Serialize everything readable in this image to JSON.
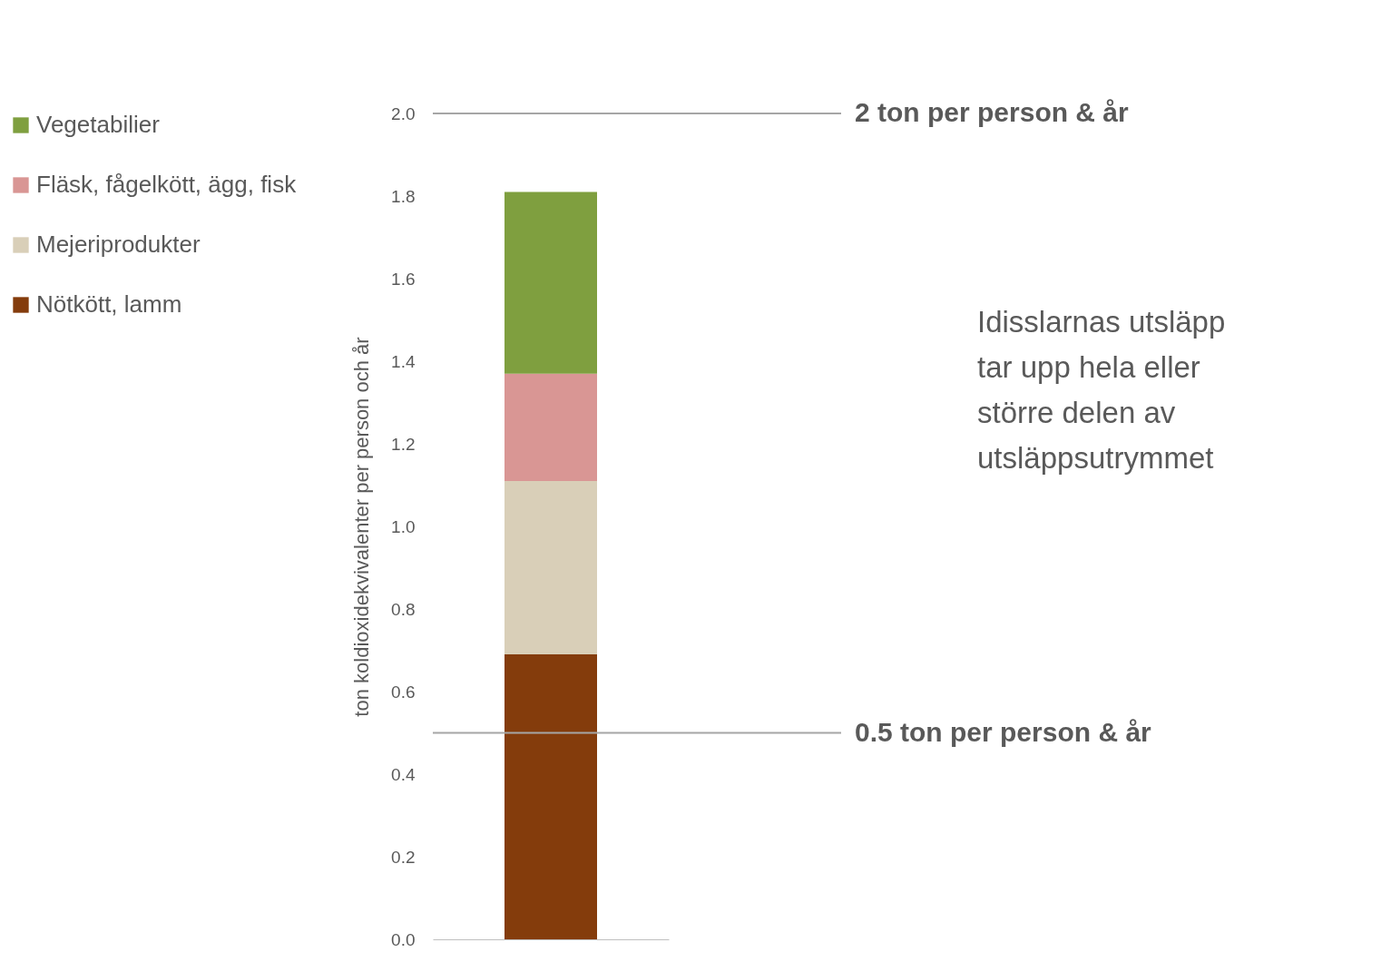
{
  "chart_data": {
    "type": "bar",
    "stacked": true,
    "categories": [
      null
    ],
    "series": [
      {
        "name": "Nötkött, lamm",
        "color": "#843c0c",
        "values": [
          0.69
        ]
      },
      {
        "name": "Mejeriprodukter",
        "color": "#d9cfb8",
        "values": [
          0.42
        ]
      },
      {
        "name": "Fläsk, fågelkött, ägg, fisk",
        "color": "#d99694",
        "values": [
          0.26
        ]
      },
      {
        "name": "Vegetabilier",
        "color": "#7f9f3f",
        "values": [
          0.44
        ]
      }
    ],
    "ylabel": "ton koldioxidekvivalenter per person och år",
    "ylim": [
      0,
      2.0
    ],
    "yticks": [
      {
        "value": 0,
        "label": "0.0"
      },
      0.2,
      0.4,
      0.6,
      0.8,
      {
        "value": 1,
        "label": "1.0"
      },
      1.2,
      1.4,
      1.6,
      1.8,
      {
        "value": 2,
        "label": "2.0"
      }
    ],
    "ref_lines": [
      {
        "axis": "y",
        "value": 2,
        "label": "2 ton per person & år",
        "color": "#a6a6a6"
      },
      {
        "axis": "y",
        "value": 0.5,
        "label": "0.5 ton per person & år",
        "color": "#a6a6a6"
      }
    ],
    "annotations": [
      "Idisslarnas utsläpp tar upp hela eller större delen av utsläppsutrymmet"
    ],
    "legend": "left",
    "tick_labels": "y",
    "grid": false
  }
}
